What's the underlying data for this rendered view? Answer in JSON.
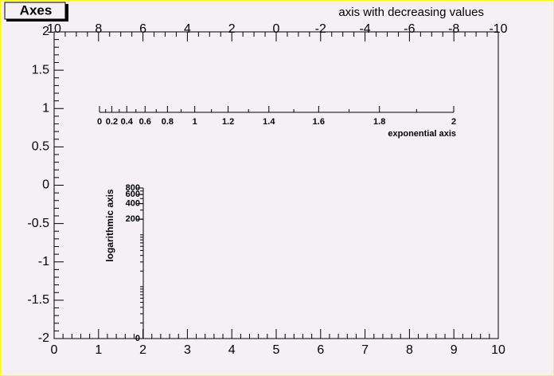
{
  "chart_data": {
    "type": "axes",
    "title": "Axes",
    "xlim": [
      0,
      10
    ],
    "xticks": [
      0,
      1,
      2,
      3,
      4,
      5,
      6,
      7,
      8,
      9,
      10
    ],
    "ylim": [
      -2,
      2
    ],
    "yticks": [
      -2,
      -1.5,
      -1,
      -0.5,
      0,
      0.5,
      1,
      1.5,
      2
    ],
    "grid": false,
    "axes": [
      {
        "title": "axis with decreasing values",
        "scale": "linear",
        "lim": [
          10,
          -10
        ],
        "ticks": [
          10,
          8,
          6,
          4,
          2,
          0,
          -2,
          -4,
          -6,
          -8,
          -10
        ]
      },
      {
        "title": "exponential axis",
        "scale": "exp",
        "lim": [
          0,
          2
        ],
        "ticks": [
          0,
          0.2,
          0.4,
          0.6,
          0.8,
          1,
          1.2,
          1.4,
          1.6,
          1.8,
          2
        ]
      },
      {
        "title": "logarithmic axis",
        "scale": "log",
        "lim": [
          1,
          800
        ],
        "ticks": [
          200,
          400,
          600,
          800
        ],
        "origin_label": "0"
      }
    ]
  }
}
